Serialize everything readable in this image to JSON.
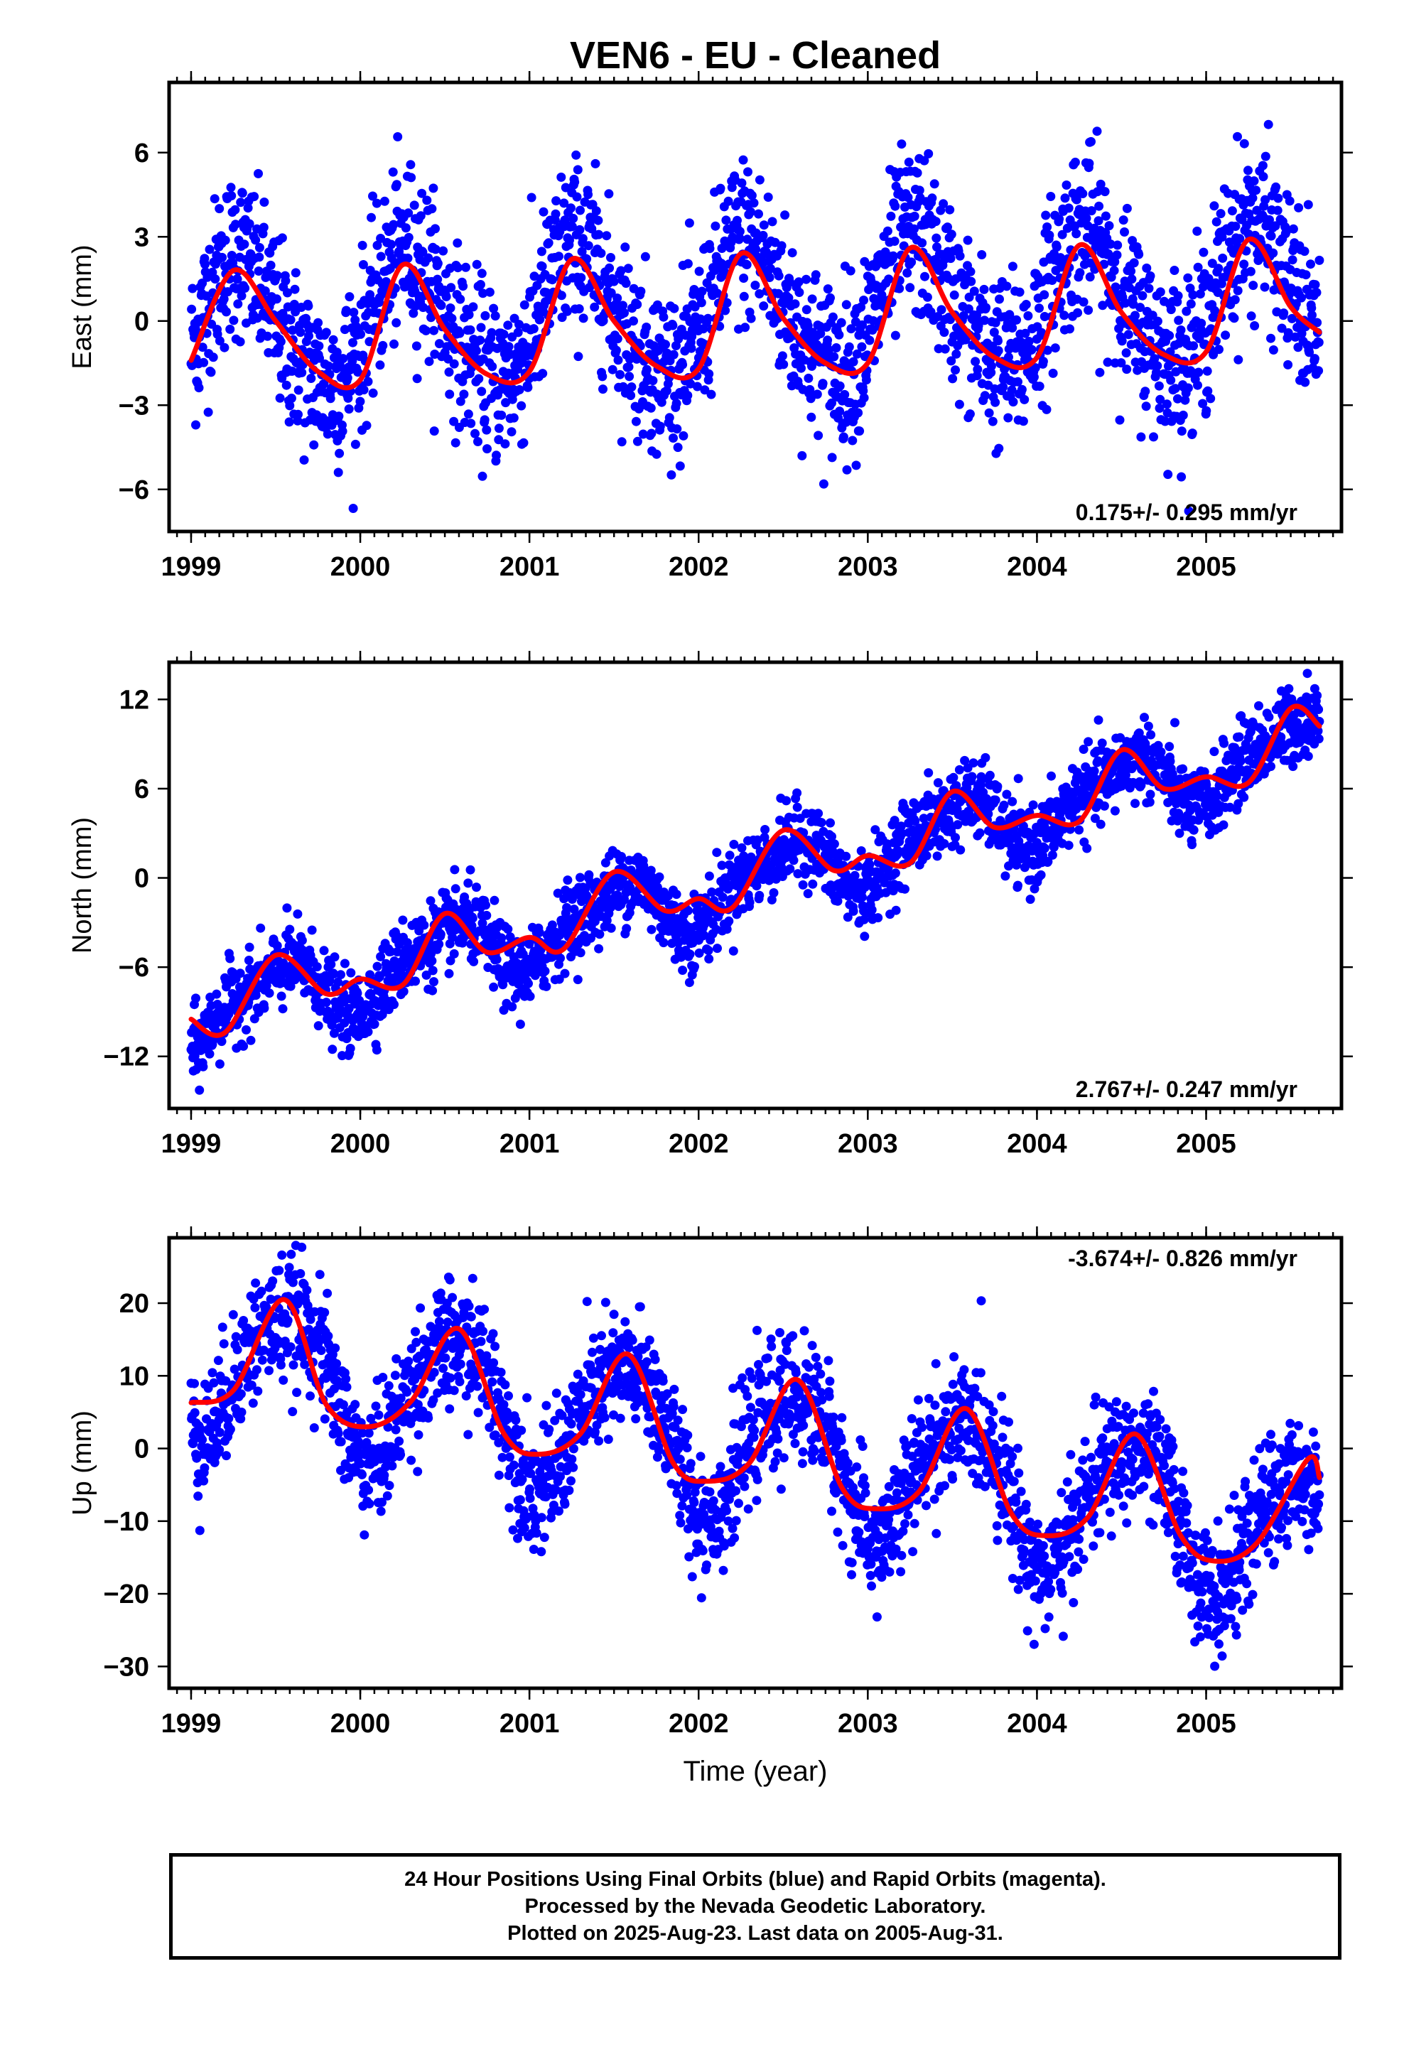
{
  "title": "VEN6  - EU - Cleaned",
  "colors": {
    "final_orbits": "#0000ff",
    "fit_line": "#ff0000",
    "frame": "#000000"
  },
  "chart_data": [
    {
      "type": "scatter",
      "name": "east",
      "ylabel": "East (mm)",
      "xlabel": "",
      "xlim": [
        1998.87,
        2005.8
      ],
      "ylim": [
        -7.5,
        8.5
      ],
      "yticks": [
        -6,
        -3,
        0,
        3,
        6
      ],
      "ytick_labels": [
        "−6",
        "−3",
        "0",
        "3",
        "6"
      ],
      "xticks": [
        1999,
        2000,
        2001,
        2002,
        2003,
        2004,
        2005
      ],
      "xtick_labels": [
        "1999",
        "2000",
        "2001",
        "2002",
        "2003",
        "2004",
        "2005"
      ],
      "rate_label": "0.175+/- 0.295 mm/yr",
      "rate_position": "bottom-right",
      "grid": false,
      "model": {
        "trend": [
          -0.2,
          0.175
        ],
        "annual": [
          2.3,
          0.29
        ],
        "semiannual": [
          0.3,
          0.1
        ]
      },
      "scatter_sigma": 1.5,
      "fit_x": [
        1999.0,
        1999.25,
        1999.5,
        1999.75,
        2000.0,
        2000.25,
        2000.5,
        2000.75,
        2001.0,
        2001.25,
        2001.5,
        2001.75,
        2002.0,
        2002.25,
        2002.5,
        2002.75,
        2003.0,
        2003.25,
        2003.5,
        2003.75,
        2004.0,
        2004.25,
        2004.5,
        2004.75,
        2005.0,
        2005.25,
        2005.5,
        2005.67
      ],
      "fit_y": [
        -1.4,
        1.8,
        0.0,
        -1.8,
        -2.1,
        2.0,
        -0.3,
        -1.9,
        -1.8,
        2.2,
        0.0,
        -1.6,
        -1.7,
        2.4,
        0.1,
        -1.5,
        -1.5,
        2.6,
        0.3,
        -1.3,
        -1.3,
        2.7,
        0.3,
        -1.2,
        -1.1,
        2.9,
        0.5,
        -0.4
      ]
    },
    {
      "type": "scatter",
      "name": "north",
      "ylabel": "North (mm)",
      "xlabel": "",
      "xlim": [
        1998.87,
        2005.8
      ],
      "ylim": [
        -15.5,
        14.5
      ],
      "yticks": [
        -12,
        -6,
        0,
        6,
        12
      ],
      "ytick_labels": [
        "−12",
        "−6",
        "0",
        "6",
        "12"
      ],
      "xticks": [
        1999,
        2000,
        2001,
        2002,
        2003,
        2004,
        2005
      ],
      "xtick_labels": [
        "1999",
        "2000",
        "2001",
        "2002",
        "2003",
        "2004",
        "2005"
      ],
      "rate_label": "2.767+/- 0.247 mm/yr",
      "rate_position": "bottom-right",
      "grid": false,
      "model": {
        "trend": [
          -9.4,
          2.767
        ],
        "annual": [
          2.0,
          0.5
        ],
        "semiannual": [
          0.6,
          0.05
        ]
      },
      "scatter_sigma": 1.3,
      "fit_x": [
        1999.0,
        1999.2,
        1999.5,
        1999.8,
        2000.0,
        2000.25,
        2000.5,
        2000.75,
        2001.0,
        2001.2,
        2001.5,
        2001.8,
        2002.0,
        2002.2,
        2002.5,
        2002.8,
        2003.0,
        2003.25,
        2003.5,
        2003.75,
        2004.0,
        2004.25,
        2004.5,
        2004.75,
        2005.0,
        2005.25,
        2005.5,
        2005.67
      ],
      "fit_y": [
        -9.5,
        -10.4,
        -5.2,
        -7.8,
        -6.8,
        -7.2,
        -2.4,
        -5.0,
        -4.0,
        -4.8,
        0.4,
        -2.2,
        -1.4,
        -2.0,
        3.2,
        0.5,
        1.5,
        1.0,
        5.8,
        3.4,
        4.2,
        3.8,
        8.6,
        6.0,
        6.8,
        6.4,
        11.4,
        10.2
      ]
    },
    {
      "type": "scatter",
      "name": "up",
      "ylabel": "Up (mm)",
      "xlabel": "Time (year)",
      "xlim": [
        1998.87,
        2005.8
      ],
      "ylim": [
        -33,
        29
      ],
      "yticks": [
        -30,
        -20,
        -10,
        0,
        10,
        20
      ],
      "ytick_labels": [
        "−30",
        "−20",
        "−10",
        "0",
        "10",
        "20"
      ],
      "xticks": [
        1999,
        2000,
        2001,
        2002,
        2003,
        2004,
        2005
      ],
      "xtick_labels": [
        "1999",
        "2000",
        "2001",
        "2002",
        "2003",
        "2004",
        "2005"
      ],
      "rate_label": "-3.674+/- 0.826 mm/yr",
      "rate_position": "top-right",
      "grid": false,
      "model": {
        "trend": [
          12.2,
          -3.674
        ],
        "annual": [
          9.0,
          0.56
        ],
        "semiannual": [
          1.5,
          0.15
        ]
      },
      "scatter_sigma": 4.2,
      "fit_x": [
        1999.0,
        1999.25,
        1999.55,
        1999.8,
        2000.05,
        2000.3,
        2000.58,
        2000.85,
        2001.05,
        2001.3,
        2001.58,
        2001.85,
        2002.05,
        2002.3,
        2002.58,
        2002.85,
        2003.05,
        2003.3,
        2003.58,
        2003.85,
        2004.05,
        2004.3,
        2004.58,
        2004.85,
        2005.05,
        2005.3,
        2005.6,
        2005.67
      ],
      "fit_y": [
        6.3,
        8.0,
        20.5,
        6.0,
        3.0,
        6.5,
        16.5,
        2.0,
        -0.8,
        2.0,
        13.0,
        -2.0,
        -4.5,
        -2.0,
        9.5,
        -5.5,
        -8.3,
        -6.0,
        5.5,
        -9.0,
        -12.0,
        -9.5,
        2.0,
        -12.0,
        -15.5,
        -13.0,
        -1.5,
        -4.0
      ]
    }
  ],
  "footer": {
    "line1": "24 Hour Positions Using Final Orbits (blue) and Rapid Orbits (magenta).",
    "line2": "Processed by the Nevada Geodetic Laboratory.",
    "line3": "Plotted on 2025-Aug-23. Last data on 2005-Aug-31."
  }
}
